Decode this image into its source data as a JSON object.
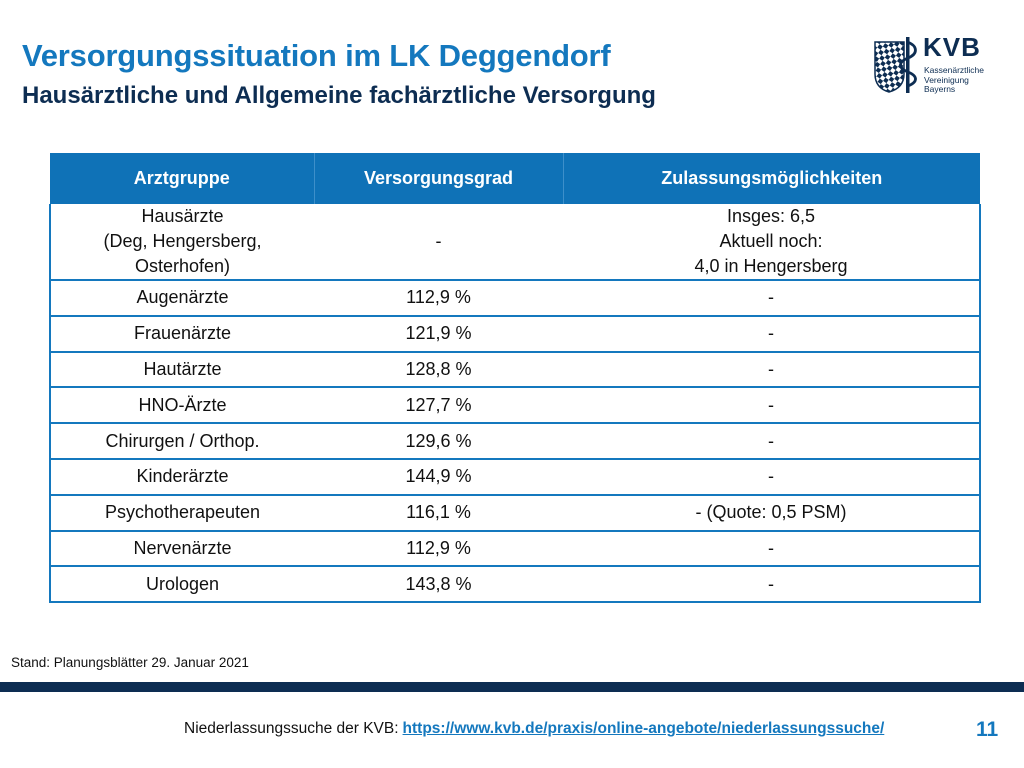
{
  "header": {
    "title": "Versorgungssituation im LK Deggendorf",
    "subtitle": "Hausärztliche und Allgemeine fachärztliche Versorgung"
  },
  "logo": {
    "name": "KVB",
    "line1": "Kassenärztliche",
    "line2": "Vereinigung",
    "line3": "Bayerns",
    "icon": "kvb-bavaria-staff-logo",
    "colors": {
      "primary": "#0d2d52",
      "accent": "#1478be"
    }
  },
  "table": {
    "headers": [
      "Arztgruppe",
      "Versorgungsgrad",
      "Zulassungsmöglichkeiten"
    ],
    "first_row": {
      "group_lines": [
        "Hausärzte",
        "(Deg, Hengersberg,",
        "Osterhofen)"
      ],
      "grade": "-",
      "options_lines": [
        "Insges: 6,5",
        "Aktuell noch:",
        "4,0 in Hengersberg"
      ]
    },
    "rows": [
      {
        "group": "Augenärzte",
        "grade": "112,9 %",
        "options": "-"
      },
      {
        "group": "Frauenärzte",
        "grade": "121,9 %",
        "options": "-"
      },
      {
        "group": "Hautärzte",
        "grade": "128,8 %",
        "options": "-"
      },
      {
        "group": "HNO-Ärzte",
        "grade": "127,7 %",
        "options": "-"
      },
      {
        "group": "Chirurgen / Orthop.",
        "grade": "129,6 %",
        "options": "-"
      },
      {
        "group": "Kinderärzte",
        "grade": "144,9 %",
        "options": "-"
      },
      {
        "group": "Psychotherapeuten",
        "grade": "116,1 %",
        "options": "- (Quote: 0,5 PSM)"
      },
      {
        "group": "Nervenärzte",
        "grade": "112,9 %",
        "options": "-"
      },
      {
        "group": "Urologen",
        "grade": "143,8 %",
        "options": "-"
      }
    ]
  },
  "stand": "Stand: Planungsblätter 29. Januar 2021",
  "footer": {
    "label": "Niederlassungssuche der KVB:",
    "link": "https://www.kvb.de/praxis/online-angebote/niederlassungssuche/",
    "page_number": "11"
  }
}
